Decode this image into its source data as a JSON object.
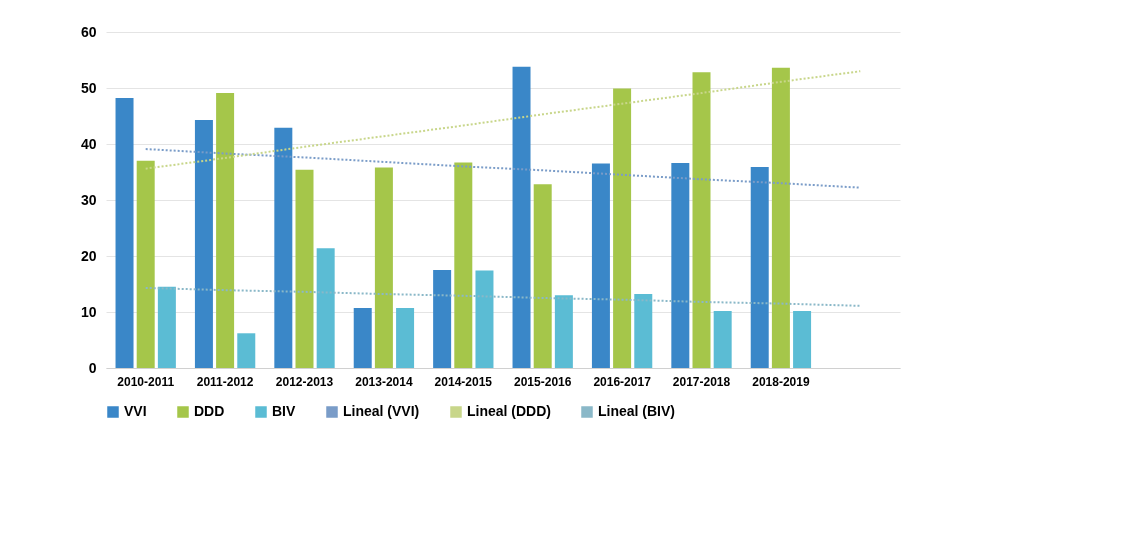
{
  "chart_data": {
    "type": "bar",
    "categories": [
      "2010-2011",
      "2011-2012",
      "2012-2013",
      "2013-2014",
      "2014-2015",
      "2015-2016",
      "2016-2017",
      "2017-2018",
      "2018-2019",
      null
    ],
    "series": [
      {
        "name": "VVI",
        "color": "#3a87c8",
        "values": [
          48.2,
          44.3,
          42.9,
          10.7,
          17.5,
          53.8,
          36.5,
          36.6,
          35.9,
          null
        ]
      },
      {
        "name": "DDD",
        "color": "#a5c64a",
        "values": [
          37.0,
          49.1,
          35.4,
          35.8,
          36.7,
          32.8,
          49.9,
          52.8,
          53.6,
          null
        ]
      },
      {
        "name": "BIV",
        "color": "#5bbcd4",
        "values": [
          14.5,
          6.2,
          21.4,
          10.7,
          17.4,
          13.0,
          13.2,
          10.2,
          10.2,
          null
        ]
      },
      {
        "name": "Lineal (VVI)",
        "type": "line",
        "line_style": "dotted",
        "color": "#7a9cc8",
        "values": [
          39.1,
          38.3,
          37.6,
          36.8,
          36.0,
          35.3,
          34.5,
          33.7,
          33.0,
          32.2
        ]
      },
      {
        "name": "Lineal (DDD)",
        "type": "line",
        "line_style": "dotted",
        "color": "#c8d68a",
        "values": [
          35.6,
          37.5,
          39.5,
          41.4,
          43.3,
          45.3,
          47.2,
          49.1,
          51.1,
          53.0
        ]
      },
      {
        "name": "Lineal (BIV)",
        "type": "line",
        "line_style": "dotted",
        "color": "#8ab8c8",
        "values": [
          14.3,
          13.9,
          13.6,
          13.2,
          12.9,
          12.5,
          12.2,
          11.8,
          11.5,
          11.1
        ]
      }
    ],
    "ylim": [
      0,
      60
    ],
    "yticks": [
      0,
      10,
      20,
      30,
      40,
      50,
      60
    ],
    "grid": "y",
    "legend": "bottom"
  }
}
